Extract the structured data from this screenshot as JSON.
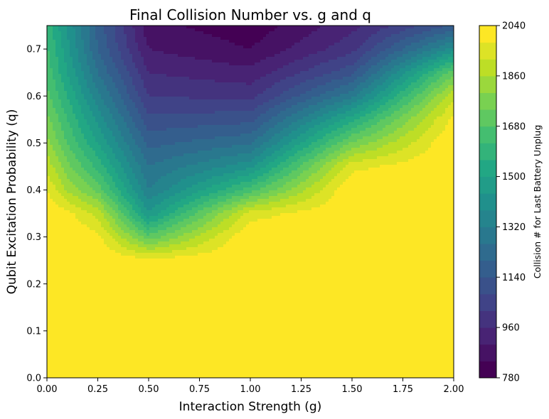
{
  "chart_data": {
    "type": "heatmap",
    "title": "Final Collision Number vs. g and q",
    "xlabel": "Interaction Strength (g)",
    "ylabel": "Qubit Excitation Probability (q)",
    "xlim": [
      0,
      2
    ],
    "ylim": [
      0,
      0.75
    ],
    "x_ticks": [
      "0.00",
      "0.25",
      "0.50",
      "0.75",
      "1.00",
      "1.25",
      "1.50",
      "1.75",
      "2.00"
    ],
    "y_ticks": [
      "0.0",
      "0.1",
      "0.2",
      "0.3",
      "0.4",
      "0.5",
      "0.6",
      "0.7"
    ],
    "colorbar": {
      "label": "Collision # for Last Battery Unplug",
      "range": [
        780,
        2040
      ],
      "levels_step": 60,
      "ticks": [
        "780",
        "960",
        "1140",
        "1320",
        "1500",
        "1680",
        "1860",
        "2040"
      ],
      "colormap": "viridis"
    },
    "x": [
      0,
      0.1,
      0.25,
      0.5,
      1.0,
      1.5,
      2.0
    ],
    "y": [
      0,
      0.2,
      0.25,
      0.3,
      0.35,
      0.4,
      0.45,
      0.5,
      0.55,
      0.6,
      0.65,
      0.7,
      0.75
    ],
    "z": [
      [
        2040,
        2040,
        2040,
        2040,
        2040,
        2040,
        2040
      ],
      [
        2040,
        2040,
        2040,
        2040,
        2040,
        2040,
        2040
      ],
      [
        2040,
        2040,
        2040,
        2000,
        2040,
        2040,
        2040
      ],
      [
        2040,
        2040,
        2000,
        1700,
        2040,
        2040,
        2040
      ],
      [
        2040,
        2000,
        1900,
        1450,
        1950,
        2040,
        2040
      ],
      [
        1980,
        1850,
        1720,
        1320,
        1650,
        2040,
        2040
      ],
      [
        1900,
        1760,
        1600,
        1260,
        1420,
        1960,
        2040
      ],
      [
        1820,
        1680,
        1500,
        1180,
        1250,
        1750,
        2040
      ],
      [
        1760,
        1620,
        1420,
        1100,
        1120,
        1540,
        2000
      ],
      [
        1700,
        1560,
        1340,
        1020,
        1000,
        1300,
        1900
      ],
      [
        1660,
        1500,
        1260,
        960,
        920,
        1120,
        1720
      ],
      [
        1630,
        1460,
        1200,
        900,
        840,
        1000,
        1400
      ],
      [
        1600,
        1430,
        1180,
        860,
        800,
        940,
        1150
      ]
    ]
  }
}
